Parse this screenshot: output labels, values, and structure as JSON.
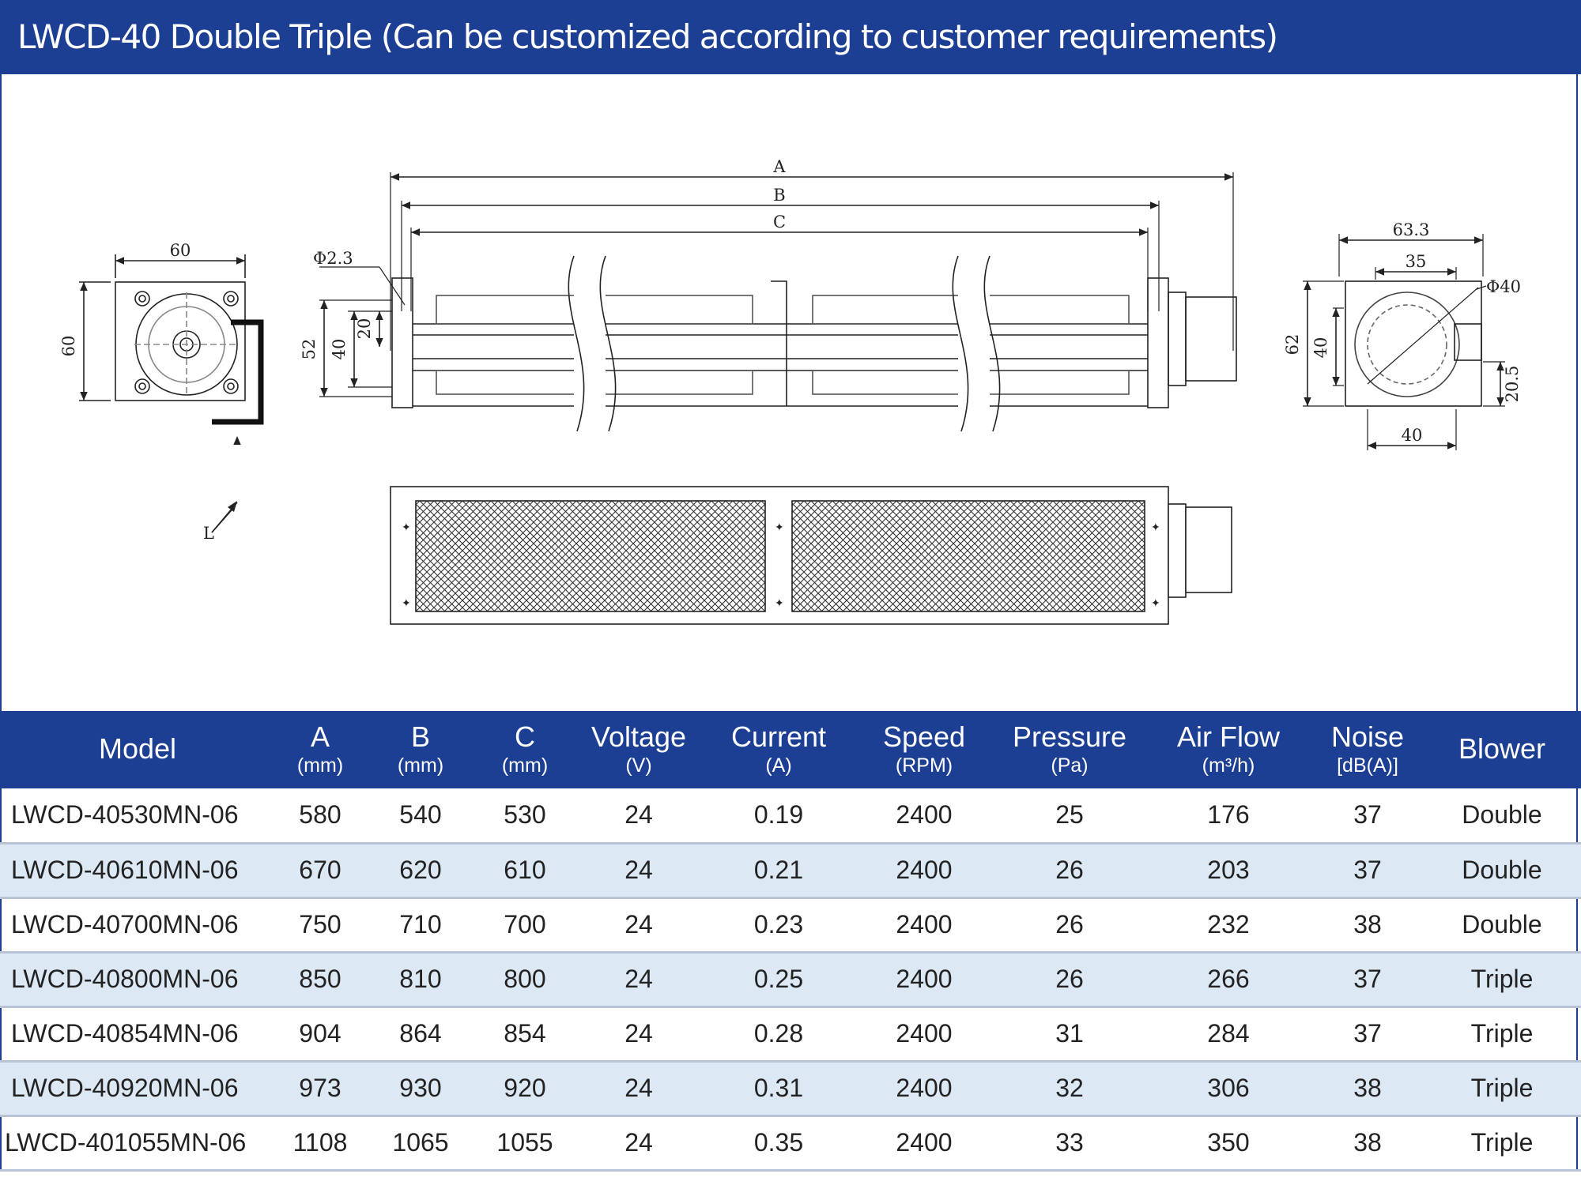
{
  "title": "LWCD-40 Double Triple  (Can be customized according to customer requirements)",
  "colors": {
    "brand_blue": "#1c3f94",
    "row_alt": "#dde8f5",
    "row_border": "#b8c4d6"
  },
  "drawing": {
    "dim_labels": {
      "A": "A",
      "B": "B",
      "C": "C",
      "side_width": "60",
      "side_height": "60",
      "side_L": "L",
      "hole_dia": "Φ2.3",
      "h52": "52",
      "h40": "40",
      "h20": "20",
      "r_width": "63.3",
      "r_inner": "35",
      "r_dia": "Φ40",
      "r_h62": "62",
      "r_h40": "40",
      "r_h20_5": "20.5",
      "r_bottom": "40"
    }
  },
  "table": {
    "headers": [
      {
        "label": "Model",
        "unit": ""
      },
      {
        "label": "A",
        "unit": "(mm)"
      },
      {
        "label": "B",
        "unit": "(mm)"
      },
      {
        "label": "C",
        "unit": "(mm)"
      },
      {
        "label": "Voltage",
        "unit": "(V)"
      },
      {
        "label": "Current",
        "unit": "(A)"
      },
      {
        "label": "Speed",
        "unit": "(RPM)"
      },
      {
        "label": "Pressure",
        "unit": "(Pa)"
      },
      {
        "label": "Air Flow",
        "unit": "(m³/h)"
      },
      {
        "label": "Noise",
        "unit": "[dB(A)]"
      },
      {
        "label": "Blower",
        "unit": ""
      }
    ],
    "rows": [
      [
        "LWCD-40530MN-06",
        "580",
        "540",
        "530",
        "24",
        "0.19",
        "2400",
        "25",
        "176",
        "37",
        "Double"
      ],
      [
        "LWCD-40610MN-06",
        "670",
        "620",
        "610",
        "24",
        "0.21",
        "2400",
        "26",
        "203",
        "37",
        "Double"
      ],
      [
        "LWCD-40700MN-06",
        "750",
        "710",
        "700",
        "24",
        "0.23",
        "2400",
        "26",
        "232",
        "38",
        "Double"
      ],
      [
        "LWCD-40800MN-06",
        "850",
        "810",
        "800",
        "24",
        "0.25",
        "2400",
        "26",
        "266",
        "37",
        "Triple"
      ],
      [
        "LWCD-40854MN-06",
        "904",
        "864",
        "854",
        "24",
        "0.28",
        "2400",
        "31",
        "284",
        "37",
        "Triple"
      ],
      [
        "LWCD-40920MN-06",
        "973",
        "930",
        "920",
        "24",
        "0.31",
        "2400",
        "32",
        "306",
        "38",
        "Triple"
      ],
      [
        "LWCD-401055MN-06",
        "1108",
        "1065",
        "1055",
        "24",
        "0.35",
        "2400",
        "33",
        "350",
        "38",
        "Triple"
      ]
    ]
  }
}
